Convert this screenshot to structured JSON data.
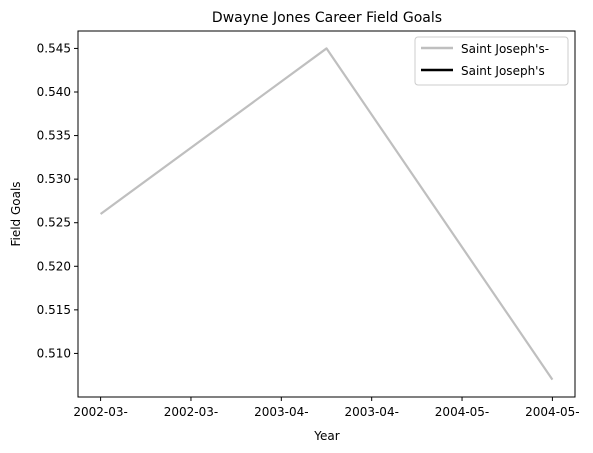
{
  "chart_data": {
    "type": "line",
    "title": "Dwayne Jones  Career Field Goals",
    "xlabel": "Year",
    "ylabel": "Field Goals",
    "x_tick_labels": [
      "2002-03-",
      "2002-03-",
      "2003-04-",
      "2003-04-",
      "2004-05-",
      "2004-05-"
    ],
    "y_ticks": [
      "0.510",
      "0.515",
      "0.520",
      "0.525",
      "0.530",
      "0.535",
      "0.540",
      "0.545"
    ],
    "ylim": [
      0.505,
      0.547
    ],
    "grid": false,
    "legend_position": "top-right",
    "series": [
      {
        "name": "Saint Joseph's-",
        "color": "#bfbfbf",
        "points": [
          {
            "x": "2002-03",
            "y": 0.526
          },
          {
            "x": "2003-04",
            "y": 0.545
          },
          {
            "x": "2004-05",
            "y": 0.507
          }
        ]
      },
      {
        "name": "Saint Joseph's",
        "color": "#000000",
        "points": []
      }
    ]
  }
}
